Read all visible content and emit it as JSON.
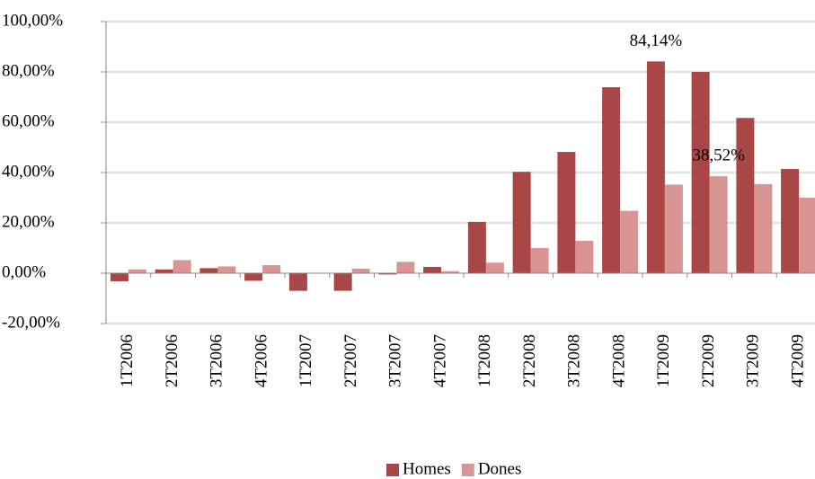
{
  "chart_data": {
    "type": "bar",
    "categories": [
      "1T2006",
      "2T2006",
      "3T2006",
      "4T2006",
      "1T2007",
      "2T2007",
      "3T2007",
      "4T2007",
      "1T2008",
      "2T2008",
      "3T2008",
      "4T2008",
      "1T2009",
      "2T2009",
      "3T2009",
      "4T2009"
    ],
    "series": [
      {
        "name": "Homes",
        "color": "#a94646",
        "values": [
          -3.2,
          1.5,
          2,
          -3,
          -7,
          -7,
          -0.5,
          2.5,
          20.4,
          40.3,
          48.2,
          73.9,
          84.14,
          80,
          61.7,
          41.4
        ],
        "value_labels": [
          null,
          null,
          null,
          null,
          null,
          null,
          null,
          null,
          null,
          null,
          null,
          null,
          "84,14%",
          null,
          null,
          null
        ]
      },
      {
        "name": "Dones",
        "color": "#d99594",
        "values": [
          1.5,
          5.2,
          2.7,
          3.2,
          0,
          1.8,
          4.5,
          0.8,
          4.2,
          10,
          12.9,
          24.8,
          35.2,
          38.52,
          35.4,
          30
        ],
        "value_labels": [
          null,
          null,
          null,
          null,
          null,
          null,
          null,
          null,
          null,
          null,
          null,
          null,
          null,
          "38,52%",
          null,
          null
        ]
      }
    ],
    "ylim": [
      -20,
      100
    ],
    "yticks": [
      {
        "value": -20,
        "label": "-20,00%"
      },
      {
        "value": 0,
        "label": "0,00%"
      },
      {
        "value": 20,
        "label": "20,00%"
      },
      {
        "value": 40,
        "label": "40,00%"
      },
      {
        "value": 60,
        "label": "60,00%"
      },
      {
        "value": 80,
        "label": "80,00%"
      },
      {
        "value": 100,
        "label": "100,00%"
      }
    ],
    "grid": true,
    "legend": "bottom"
  }
}
